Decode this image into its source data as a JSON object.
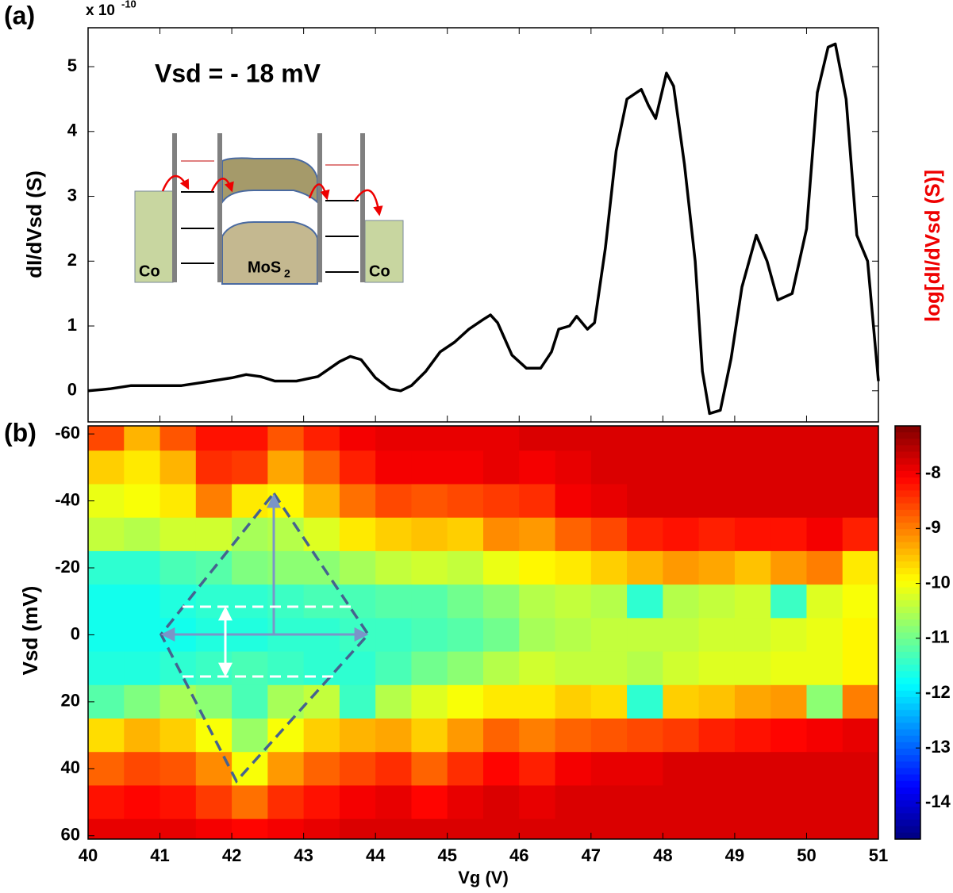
{
  "chart_data": [
    {
      "type": "line",
      "panel_label": "(a)",
      "ylabel": "dI/dVsd (S)",
      "axis_multiplier": {
        "base": "x 10",
        "exponent": "-10"
      },
      "annotation": "Vsd = - 18 mV",
      "inset": {
        "labels": [
          "Co",
          "MoS",
          "Co"
        ],
        "subscript": "2"
      },
      "color": "#000000",
      "x": [
        40.0,
        40.3,
        40.6,
        41.0,
        41.3,
        41.6,
        42.0,
        42.2,
        42.4,
        42.6,
        42.9,
        43.2,
        43.5,
        43.65,
        43.8,
        44.0,
        44.2,
        44.35,
        44.5,
        44.7,
        44.9,
        45.1,
        45.3,
        45.5,
        45.6,
        45.7,
        45.9,
        46.1,
        46.3,
        46.45,
        46.55,
        46.7,
        46.8,
        46.95,
        47.05,
        47.2,
        47.35,
        47.5,
        47.7,
        47.8,
        47.9,
        48.05,
        48.15,
        48.3,
        48.45,
        48.55,
        48.65,
        48.8,
        48.95,
        49.1,
        49.3,
        49.45,
        49.6,
        49.8,
        50.0,
        50.15,
        50.3,
        50.4,
        50.55,
        50.7,
        50.85,
        51.0
      ],
      "values": [
        0.0,
        0.03,
        0.08,
        0.08,
        0.08,
        0.13,
        0.2,
        0.25,
        0.22,
        0.15,
        0.15,
        0.22,
        0.45,
        0.53,
        0.48,
        0.2,
        0.03,
        0.0,
        0.08,
        0.3,
        0.6,
        0.75,
        0.95,
        1.1,
        1.17,
        1.05,
        0.55,
        0.35,
        0.35,
        0.6,
        0.95,
        1.0,
        1.15,
        0.95,
        1.05,
        2.2,
        3.7,
        4.5,
        4.65,
        4.4,
        4.2,
        4.9,
        4.7,
        3.5,
        2.0,
        0.3,
        -0.35,
        -0.3,
        0.5,
        1.6,
        2.4,
        2.0,
        1.4,
        1.5,
        2.5,
        4.6,
        5.3,
        5.35,
        4.5,
        2.4,
        2.0,
        0.15
      ],
      "xlim": [
        40,
        51
      ],
      "ylim": [
        -0.48,
        5.6
      ],
      "yticks": [
        0,
        1,
        2,
        3,
        4,
        5
      ]
    },
    {
      "type": "heatmap",
      "panel_label": "(b)",
      "xlabel": "Vg (V)",
      "ylabel": "Vsd (mV)",
      "colorbar_label": "log[dI/dVsd (S)]",
      "colormap": "jet",
      "x": [
        40.25,
        40.75,
        41.25,
        41.75,
        42.25,
        42.75,
        43.25,
        43.75,
        44.25,
        44.75,
        45.25,
        45.75,
        46.25,
        46.75,
        47.25,
        47.75,
        48.25,
        48.75,
        49.25,
        49.75,
        50.25,
        50.75
      ],
      "y": [
        -60,
        -50,
        -40,
        -30,
        -20,
        -10,
        0,
        10,
        20,
        30,
        40,
        50,
        60
      ],
      "z": [
        [
          -8.6,
          -9.4,
          -8.7,
          -8.2,
          -8.2,
          -8.7,
          -8.3,
          -8.0,
          -7.9,
          -7.9,
          -7.9,
          -7.9,
          -7.8,
          -7.8,
          -7.8,
          -7.8,
          -7.8,
          -7.8,
          -7.8,
          -7.8,
          -7.8,
          -7.8
        ],
        [
          -9.6,
          -9.8,
          -9.4,
          -8.4,
          -8.5,
          -9.3,
          -8.8,
          -8.3,
          -8.0,
          -8.0,
          -8.0,
          -7.9,
          -8.0,
          -7.9,
          -7.8,
          -7.8,
          -7.8,
          -7.8,
          -7.8,
          -7.8,
          -7.8,
          -7.8
        ],
        [
          -10.1,
          -10.0,
          -9.8,
          -9.0,
          -9.8,
          -9.9,
          -9.4,
          -8.9,
          -8.6,
          -8.7,
          -8.6,
          -8.5,
          -8.4,
          -8.0,
          -7.9,
          -7.8,
          -7.8,
          -7.8,
          -7.8,
          -7.8,
          -7.8,
          -7.8
        ],
        [
          -10.4,
          -10.5,
          -10.3,
          -10.3,
          -10.6,
          -10.5,
          -10.2,
          -9.8,
          -9.6,
          -9.5,
          -9.6,
          -9.1,
          -9.2,
          -8.8,
          -8.6,
          -8.3,
          -8.2,
          -8.3,
          -8.2,
          -8.2,
          -8.0,
          -8.3
        ],
        [
          -11.5,
          -11.5,
          -11.3,
          -11.2,
          -10.9,
          -10.8,
          -10.8,
          -10.6,
          -10.4,
          -10.3,
          -10.4,
          -10.1,
          -9.9,
          -9.8,
          -9.6,
          -9.4,
          -9.2,
          -9.3,
          -9.5,
          -9.2,
          -9.0,
          -9.8
        ],
        [
          -11.7,
          -11.7,
          -11.6,
          -11.5,
          -11.5,
          -11.4,
          -11.3,
          -11.3,
          -11.2,
          -11.2,
          -11.0,
          -10.8,
          -10.5,
          -10.4,
          -10.5,
          -11.5,
          -10.5,
          -10.4,
          -10.3,
          -11.4,
          -10.2,
          -10.0
        ],
        [
          -11.7,
          -11.7,
          -11.7,
          -11.6,
          -11.6,
          -11.5,
          -11.5,
          -11.4,
          -11.4,
          -11.3,
          -11.2,
          -11.0,
          -10.6,
          -10.5,
          -10.4,
          -10.4,
          -10.4,
          -10.3,
          -10.3,
          -10.2,
          -10.1,
          -9.9
        ],
        [
          -11.6,
          -11.6,
          -11.5,
          -11.4,
          -11.3,
          -11.4,
          -11.5,
          -11.5,
          -11.3,
          -11.0,
          -10.8,
          -10.5,
          -10.3,
          -10.4,
          -10.4,
          -10.5,
          -10.3,
          -10.2,
          -10.2,
          -10.1,
          -10.1,
          -9.9
        ],
        [
          -11.2,
          -10.9,
          -10.6,
          -10.8,
          -11.3,
          -10.6,
          -10.4,
          -11.4,
          -10.5,
          -10.2,
          -10.0,
          -9.8,
          -9.8,
          -9.6,
          -9.7,
          -11.5,
          -9.6,
          -9.5,
          -9.3,
          -9.2,
          -10.8,
          -9.0
        ],
        [
          -9.7,
          -9.4,
          -9.6,
          -10.0,
          -10.7,
          -10.0,
          -9.6,
          -9.4,
          -9.3,
          -9.6,
          -9.2,
          -8.8,
          -9.0,
          -8.8,
          -8.7,
          -8.6,
          -8.5,
          -8.3,
          -8.2,
          -8.1,
          -8.0,
          -7.9
        ],
        [
          -8.8,
          -8.6,
          -8.7,
          -9.1,
          -10.0,
          -9.2,
          -8.8,
          -8.6,
          -8.4,
          -8.8,
          -8.4,
          -8.1,
          -8.3,
          -8.0,
          -7.9,
          -7.9,
          -7.8,
          -7.8,
          -7.8,
          -7.8,
          -7.8,
          -7.8
        ],
        [
          -8.2,
          -8.1,
          -8.2,
          -8.5,
          -8.9,
          -8.4,
          -8.2,
          -8.0,
          -7.9,
          -8.1,
          -7.9,
          -7.8,
          -7.9,
          -7.8,
          -7.8,
          -7.8,
          -7.8,
          -7.8,
          -7.8,
          -7.8,
          -7.8,
          -7.8
        ],
        [
          -7.9,
          -7.9,
          -7.9,
          -8.0,
          -8.1,
          -8.0,
          -7.9,
          -7.8,
          -7.8,
          -7.8,
          -7.8,
          -7.8,
          -7.8,
          -7.8,
          -7.8,
          -7.8,
          -7.8,
          -7.8,
          -7.8,
          -7.8,
          -7.8,
          -7.8
        ]
      ],
      "xlim": [
        40,
        51
      ],
      "xticks": [
        40,
        41,
        42,
        43,
        44,
        45,
        46,
        47,
        48,
        49,
        50,
        51
      ],
      "ylim": [
        -62.4,
        61
      ],
      "yticks": [
        -60,
        -40,
        -20,
        0,
        20,
        40,
        60
      ],
      "clim": [
        -14.66,
        -7.13
      ],
      "cticks": [
        -8,
        -9,
        -10,
        -11,
        -12,
        -13,
        -14
      ]
    }
  ]
}
